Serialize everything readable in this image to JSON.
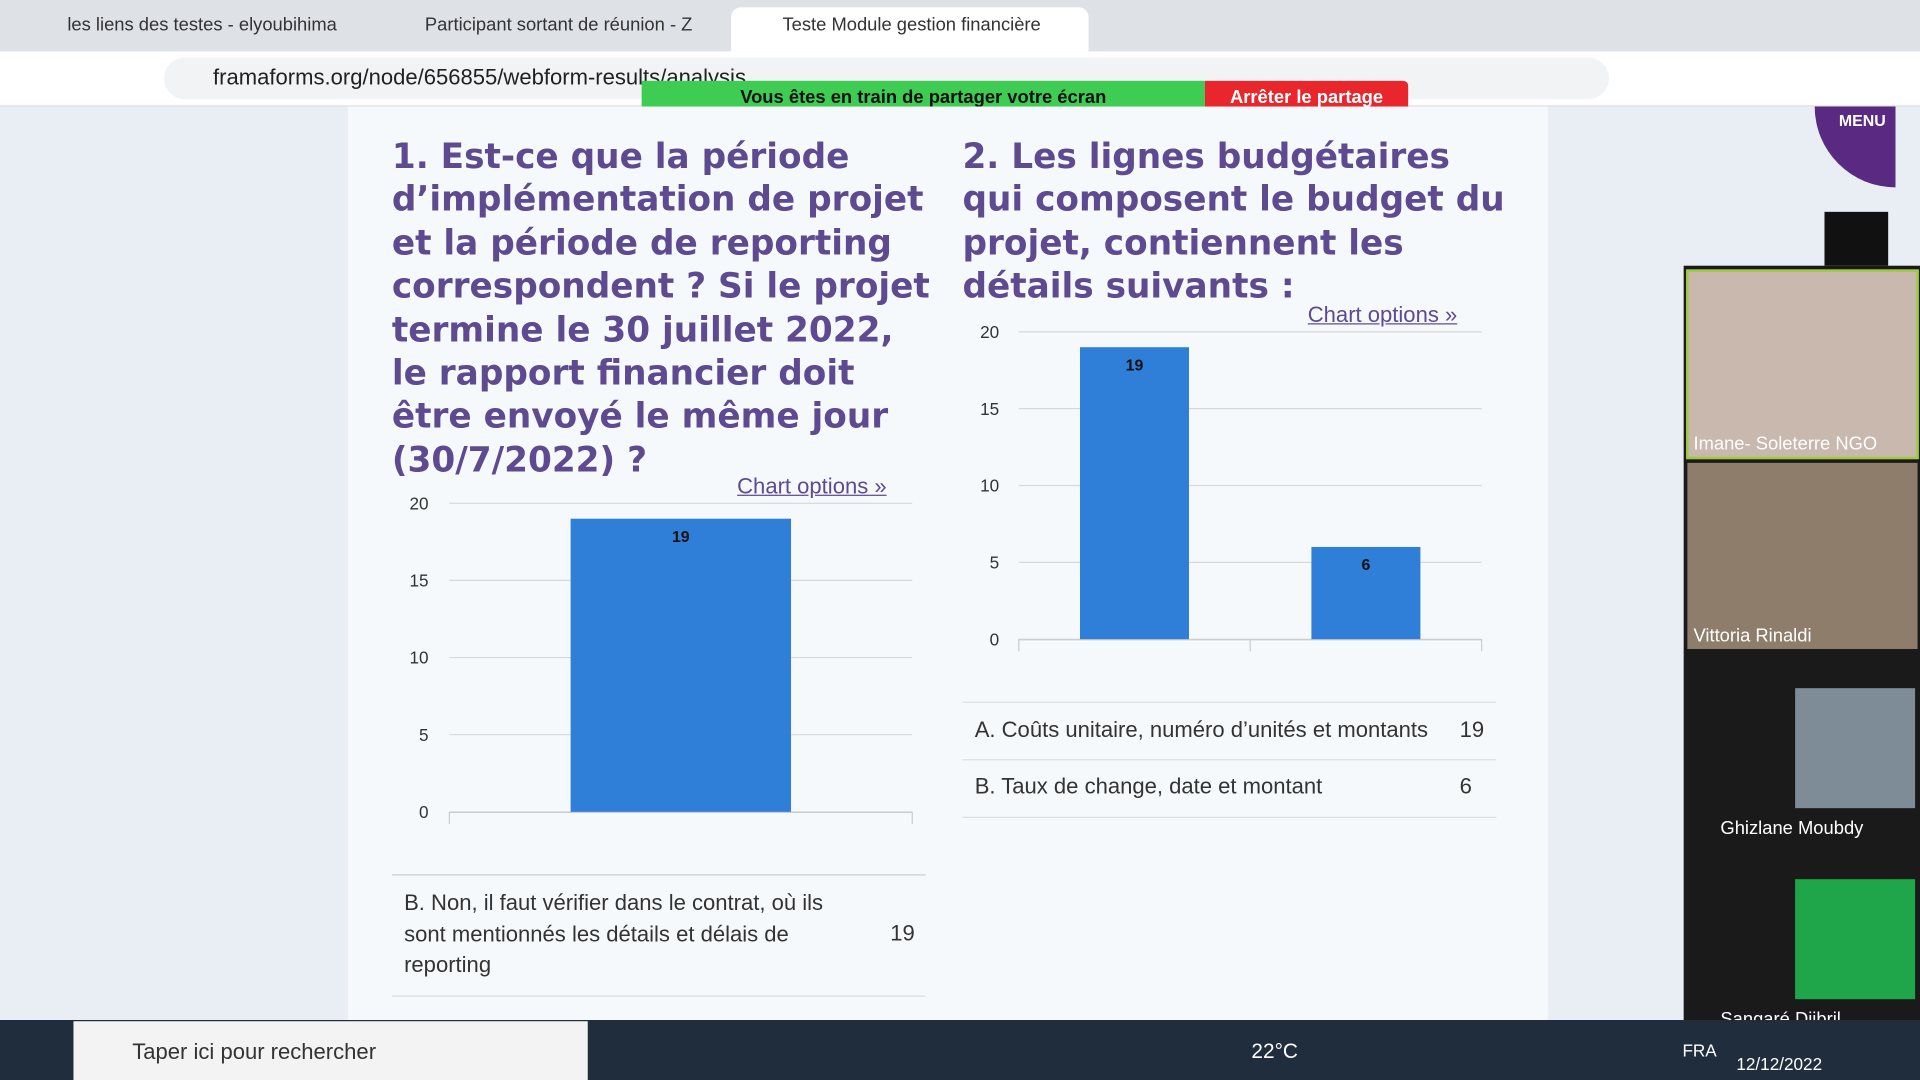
{
  "tabs": [
    "les liens des testes - elyoubihima",
    "Participant sortant de réunion - Z",
    "Teste Module gestion financière"
  ],
  "url": "framaforms.org/node/656855/webform-results/analysis",
  "share_banner": {
    "message": "Vous êtes en train de partager votre écran",
    "stop": "Arrêter le partage"
  },
  "menu": "MENU",
  "questions": [
    {
      "title": "1. Est-ce que la période d’implémentation de projet et la période de reporting correspondent ? Si le projet termine le 30 juillet 2022, le rapport financier doit être envoyé le même jour (30/7/2022) ?",
      "chart_options": "Chart options »",
      "chart": {
        "type": "bar",
        "categories": [
          null
        ],
        "values": [
          19
        ],
        "color": "#2f7ed8",
        "ylim": [
          0,
          20
        ],
        "yticks": [
          0,
          5,
          10,
          15,
          20
        ],
        "grid": true
      },
      "rows": [
        [
          "B. Non, il faut vérifier dans le contrat, où ils sont mentionnés les détails et délais de reporting",
          "19"
        ]
      ]
    },
    {
      "title": "2. Les lignes budgétaires qui composent le budget du projet, contiennent les détails suivants :",
      "chart_options": "Chart options »",
      "chart": {
        "type": "bar",
        "categories": [
          null,
          null
        ],
        "values": [
          19,
          6
        ],
        "color": "#2f7ed8",
        "ylim": [
          0,
          20
        ],
        "yticks": [
          0,
          5,
          10,
          15,
          20
        ],
        "grid": true
      },
      "rows": [
        [
          "A. Coûts unitaire, numéro d’unités et montants",
          "19"
        ],
        [
          "B. Taux de change, date et montant",
          "6"
        ]
      ]
    }
  ],
  "participants": [
    "Imane- Soleterre NGO",
    "Vittoria Rinaldi",
    "Ghizlane Moubdy",
    "Sangaré Djibril"
  ],
  "taskbar": {
    "search": "Taper ici pour rechercher",
    "weather": "22°C",
    "language": "FRA",
    "date": "12/12/2022"
  }
}
